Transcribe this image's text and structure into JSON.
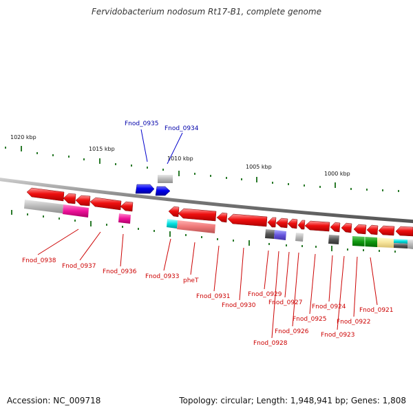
{
  "title": "Fervidobacterium nodosum Rt17-B1, complete genome",
  "footer": {
    "accession": "Accession: NC_009718",
    "topology": "Topology: circular; Length: 1,948,941 bp; Genes: 1,808"
  },
  "colors": {
    "backbone": "#777777",
    "forward_gene": "#0000dd",
    "reverse_gene": "#ee0000",
    "tick": "#2a7a2a",
    "forward_label": "#0000aa",
    "reverse_label": "#cc0000"
  },
  "scale_labels": [
    "1020 kbp",
    "1015 kbp",
    "1010 kbp",
    "1005 kbp",
    "1000 kbp"
  ],
  "gene_labels": {
    "forward": [
      "Fnod_0935",
      "Fnod_0934"
    ],
    "reverse": [
      "Fnod_0938",
      "Fnod_0937",
      "Fnod_0936",
      "Fnod_0933",
      "pheT",
      "Fnod_0931",
      "Fnod_0930",
      "Fnod_0929",
      "Fnod_0928",
      "Fnod_0927",
      "Fnod_0926",
      "Fnod_0925",
      "Fnod_0924",
      "Fnod_0923",
      "Fnod_0922",
      "Fnod_0921"
    ]
  }
}
